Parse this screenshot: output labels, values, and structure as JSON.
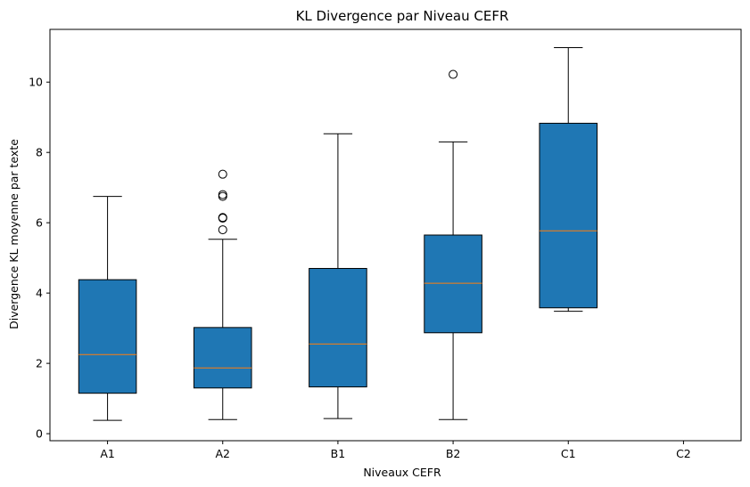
{
  "chart_data": {
    "type": "boxplot",
    "title": "KL Divergence par Niveau CEFR",
    "xlabel": "Niveaux CEFR",
    "ylabel": "Divergence KL moyenne par texte",
    "ylim": [
      -0.2,
      11.5
    ],
    "yticks": [
      0,
      2,
      4,
      6,
      8,
      10
    ],
    "grid": false,
    "categories": [
      "A1",
      "A2",
      "B1",
      "B2",
      "C1",
      "C2"
    ],
    "boxes": [
      {
        "category": "A1",
        "whisker_low": 0.38,
        "q1": 1.15,
        "median": 2.25,
        "q3": 4.38,
        "whisker_high": 6.75,
        "outliers": []
      },
      {
        "category": "A2",
        "whisker_low": 0.4,
        "q1": 1.3,
        "median": 1.87,
        "q3": 3.02,
        "whisker_high": 5.53,
        "outliers": [
          5.8,
          6.13,
          6.15,
          6.75,
          6.8,
          7.38
        ]
      },
      {
        "category": "B1",
        "whisker_low": 0.43,
        "q1": 1.33,
        "median": 2.55,
        "q3": 4.7,
        "whisker_high": 8.53,
        "outliers": []
      },
      {
        "category": "B2",
        "whisker_low": 0.4,
        "q1": 2.87,
        "median": 4.28,
        "q3": 5.65,
        "whisker_high": 8.3,
        "outliers": [
          10.22
        ]
      },
      {
        "category": "C1",
        "whisker_low": 3.48,
        "q1": 3.58,
        "median": 5.77,
        "q3": 8.83,
        "whisker_high": 10.98,
        "outliers": []
      },
      {
        "category": "C2",
        "empty": true
      }
    ],
    "colors": {
      "box_fill": "#1f77b4",
      "median": "#ff7f0e",
      "line": "#000000"
    }
  }
}
